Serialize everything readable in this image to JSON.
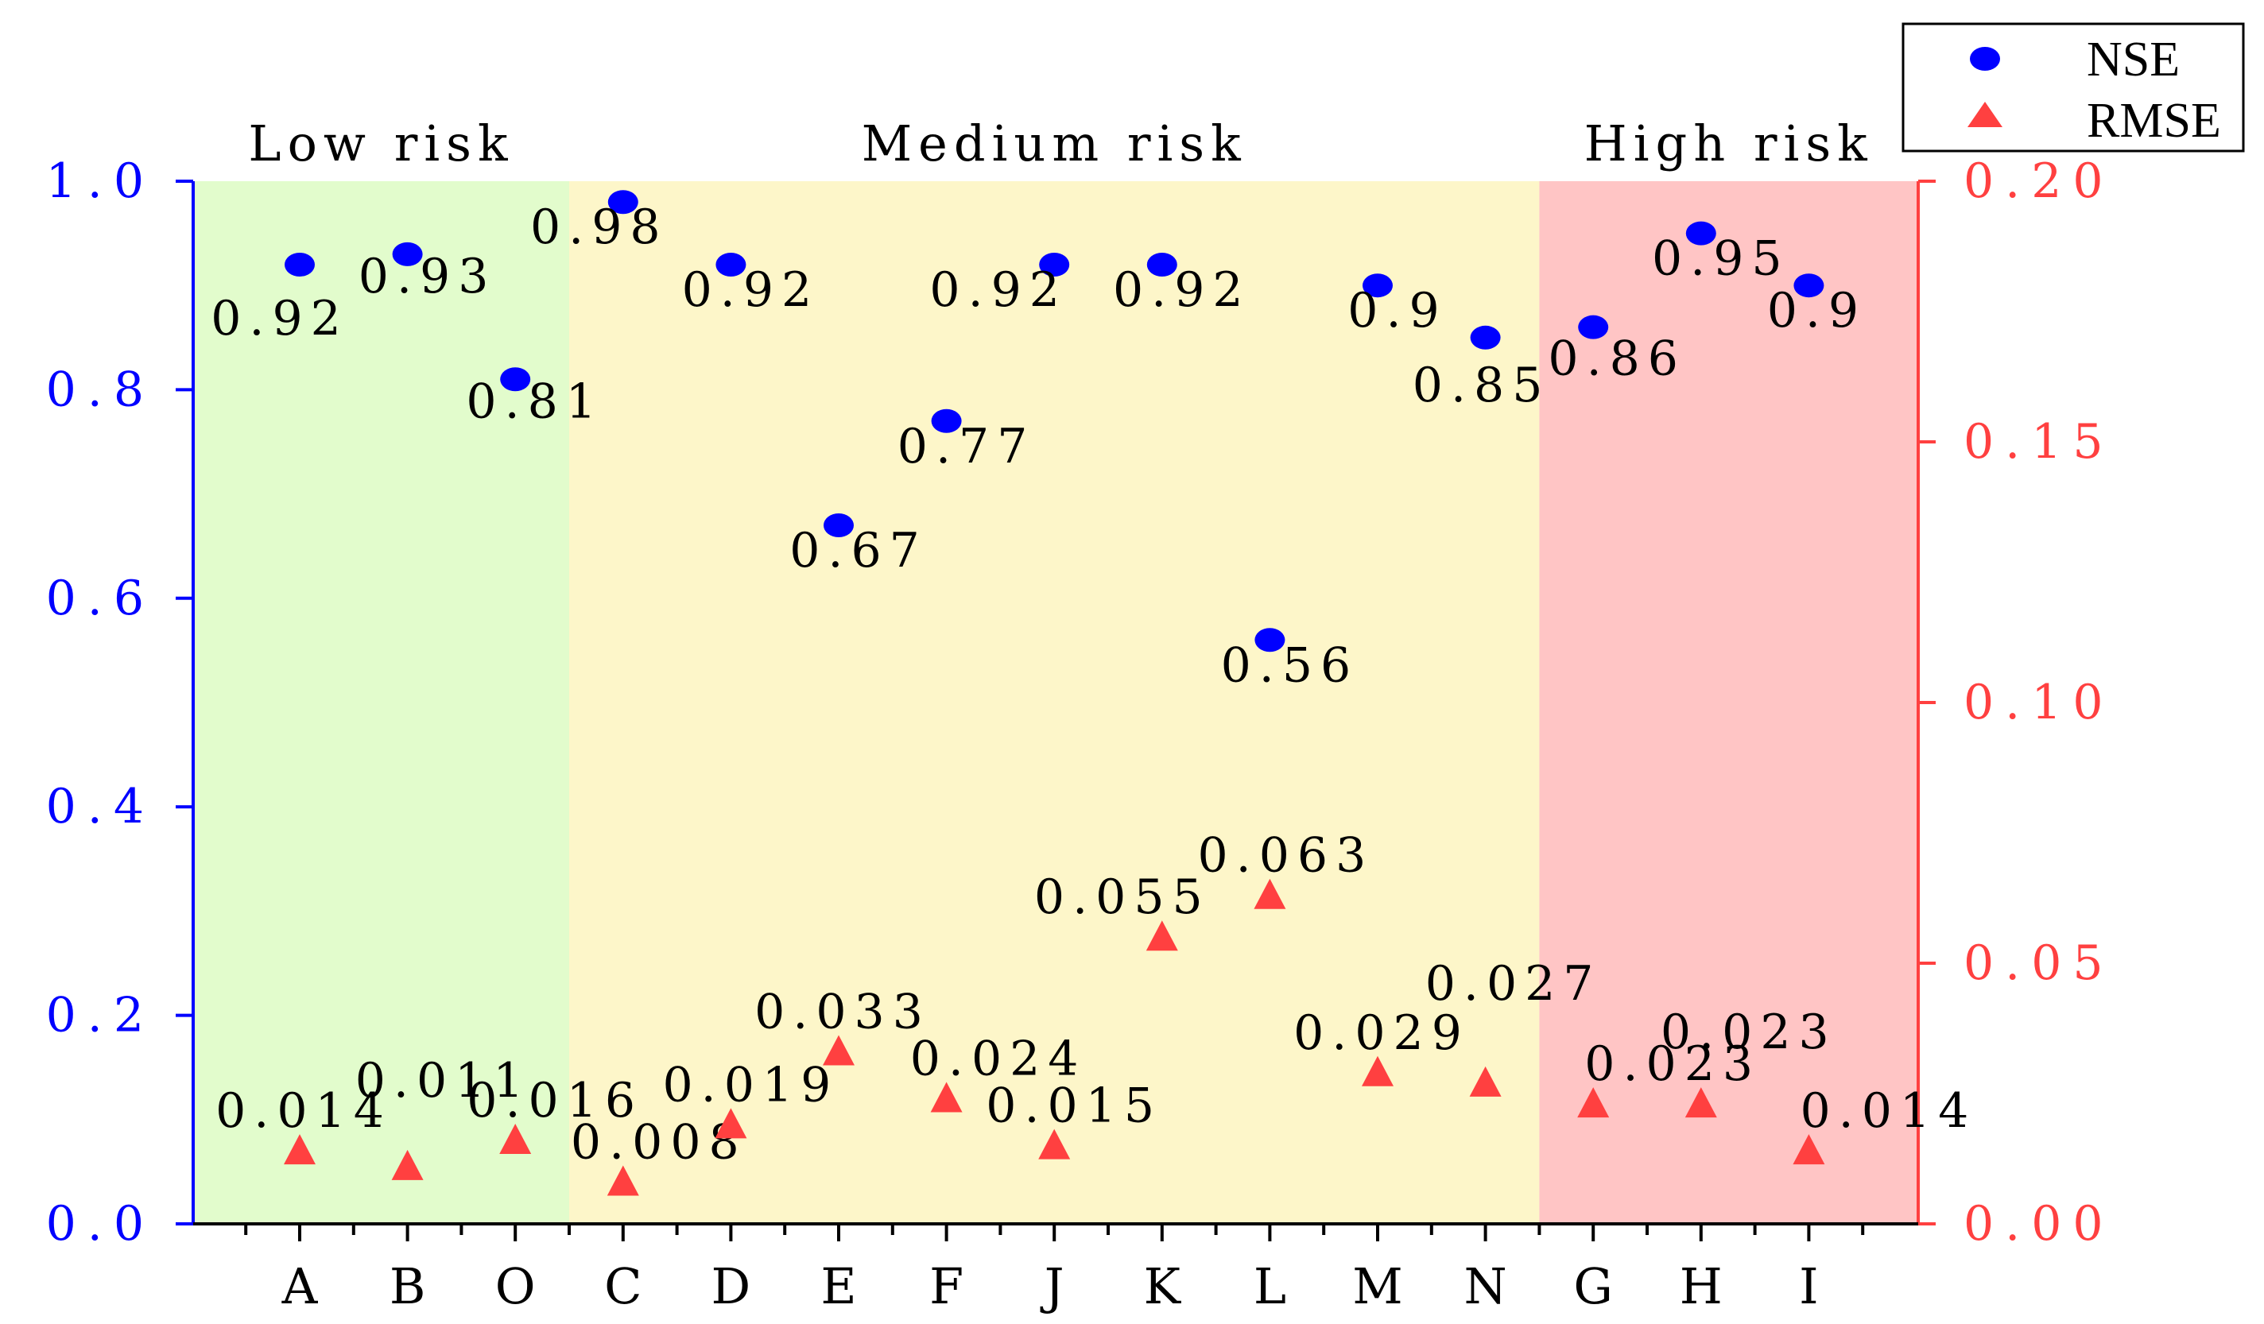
{
  "chart_data": {
    "type": "scatter",
    "categories": [
      "A",
      "B",
      "O",
      "C",
      "D",
      "E",
      "F",
      "J",
      "K",
      "L",
      "M",
      "N",
      "G",
      "H",
      "I"
    ],
    "series": [
      {
        "name": "NSE",
        "axis": "left",
        "marker": "circle",
        "color": "#0000ff",
        "values": [
          0.92,
          0.93,
          0.81,
          0.98,
          0.92,
          0.67,
          0.77,
          0.92,
          0.92,
          0.56,
          0.9,
          0.85,
          0.86,
          0.95,
          0.9
        ],
        "labels": [
          "0.92",
          "0.93",
          "0.81",
          "0.98",
          "0.92",
          "0.67",
          "0.77",
          "0.92",
          "0.92",
          "0.56",
          "0.9",
          "0.85",
          "0.86",
          "0.95",
          "0.9"
        ]
      },
      {
        "name": "RMSE",
        "axis": "right",
        "marker": "triangle",
        "color": "#ff4040",
        "values": [
          0.014,
          0.011,
          0.016,
          0.008,
          0.019,
          0.033,
          0.024,
          0.015,
          0.055,
          0.063,
          0.029,
          0.027,
          0.023,
          0.023,
          0.014
        ],
        "labels": [
          "0.014",
          "0.011",
          "0.016",
          "0.008",
          "0.019",
          "0.033",
          "0.024",
          "0.015",
          "0.055",
          "0.063",
          "0.029",
          "0.027",
          "0.023",
          "0.023",
          "0.014"
        ]
      }
    ],
    "left_axis": {
      "range": [
        0,
        1.0
      ],
      "ticks": [
        0.0,
        0.2,
        0.4,
        0.6,
        0.8,
        1.0
      ],
      "tick_labels": [
        "0.0",
        "0.2",
        "0.4",
        "0.6",
        "0.8",
        "1.0"
      ],
      "color": "#0000ff"
    },
    "right_axis": {
      "range": [
        0,
        0.2
      ],
      "ticks": [
        0.0,
        0.05,
        0.1,
        0.15,
        0.2
      ],
      "tick_labels": [
        "0.00",
        "0.05",
        "0.10",
        "0.15",
        "0.20"
      ],
      "color": "#ff4040"
    },
    "regions": [
      {
        "name": "Low risk",
        "from_category": "A",
        "to_category": "O",
        "color": "#e2fccc"
      },
      {
        "name": "Medium risk",
        "from_category": "C",
        "to_category": "N",
        "color": "#fdf6c9"
      },
      {
        "name": "High risk",
        "from_category": "G",
        "to_category": "I",
        "color": "#ffc5c5"
      }
    ],
    "legend": {
      "position": "top-right",
      "entries": [
        "NSE",
        "RMSE"
      ]
    },
    "title": "",
    "xlabel": "",
    "ylabel": ""
  }
}
